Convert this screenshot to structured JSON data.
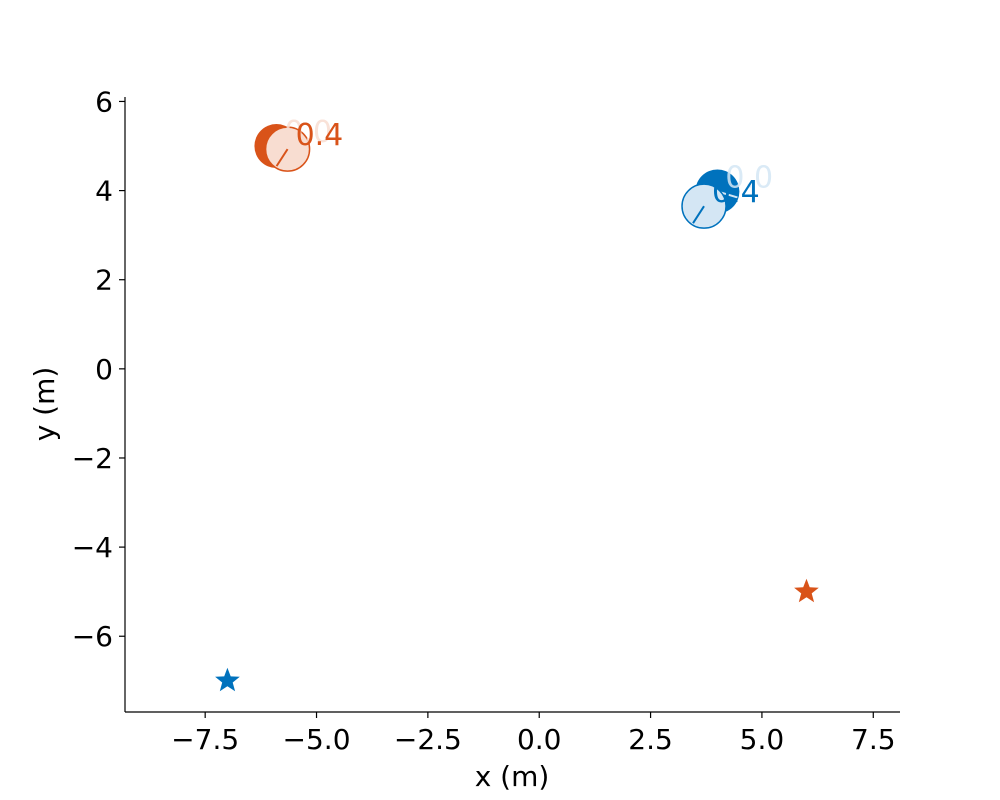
{
  "chart_data": {
    "type": "scatter",
    "title": "",
    "xlabel": "x (m)",
    "ylabel": "y (m)",
    "xlim": [
      -9.3,
      8.1
    ],
    "ylim": [
      -7.7,
      6.1
    ],
    "xticks": [
      -7.5,
      -5.0,
      -2.5,
      0.0,
      2.5,
      5.0,
      7.5
    ],
    "xtick_labels": [
      "−7.5",
      "−5.0",
      "−2.5",
      "0.0",
      "2.5",
      "5.0",
      "7.5"
    ],
    "yticks": [
      -6,
      -4,
      -2,
      0,
      2,
      4,
      6
    ],
    "ytick_labels": [
      "−6",
      "−4",
      "−2",
      "0",
      "2",
      "4",
      "6"
    ],
    "grid": false,
    "series": [
      {
        "color": "#D95319",
        "light_fill": "#F8DDD1",
        "states": [
          {
            "time": "0.0",
            "x": -5.9,
            "y": 5.0
          },
          {
            "time": "0.4",
            "x": -5.65,
            "y": 4.93
          }
        ],
        "goal": {
          "x": 6.0,
          "y": -5.0
        }
      },
      {
        "color": "#0072BD",
        "light_fill": "#D4E6F4",
        "states": [
          {
            "time": "0.0",
            "x": 4.0,
            "y": 3.98
          },
          {
            "time": "0.4",
            "x": 3.7,
            "y": 3.65
          }
        ],
        "goal": {
          "x": -7.0,
          "y": -7.0
        }
      }
    ]
  }
}
